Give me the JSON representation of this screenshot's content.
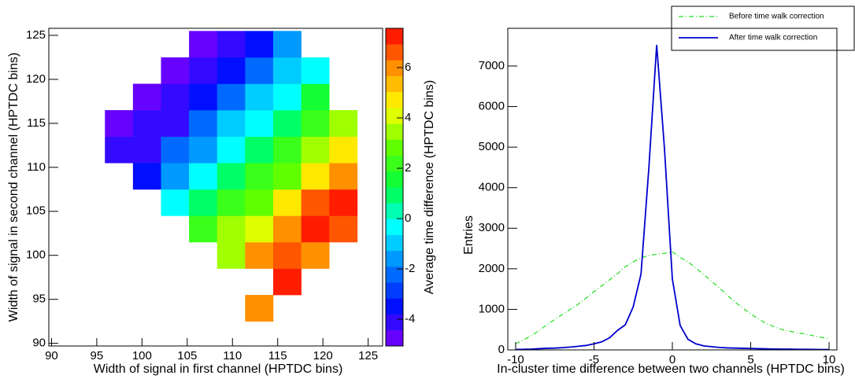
{
  "chart_data": [
    {
      "type": "heatmap",
      "x_label": "Width of signal in first channel (HPTDC bins)",
      "y_label": "Width of signal in second channel (HPTDC bins)",
      "z_label": "Average time difference (HPTDC bins)",
      "x_bins": [
        95.9,
        99.0,
        102.1,
        105.2,
        108.3,
        111.4,
        114.5,
        117.6,
        120.7,
        123.8
      ],
      "y_bins": [
        92.5,
        95.5,
        98.5,
        101.5,
        104.5,
        107.5,
        110.5,
        113.5,
        116.5,
        119.5,
        122.5,
        125.5
      ],
      "z": [
        [
          null,
          null,
          null,
          null,
          null,
          6.2,
          null,
          null,
          null
        ],
        [
          null,
          null,
          null,
          null,
          null,
          null,
          7.2,
          null,
          null
        ],
        [
          null,
          null,
          null,
          null,
          3.7,
          5.8,
          6.8,
          6.0,
          null
        ],
        [
          null,
          null,
          null,
          2.0,
          3.3,
          4.3,
          5.8,
          7.3,
          6.7
        ],
        [
          null,
          null,
          -0.4,
          0.8,
          2.0,
          3.0,
          5.0,
          6.8,
          7.2
        ],
        [
          null,
          -3.3,
          -1.8,
          -0.5,
          1.0,
          2.0,
          3.0,
          5.0,
          6.0
        ],
        [
          -4.0,
          -4.0,
          -2.3,
          -1.8,
          -0.5,
          1.0,
          2.0,
          3.6,
          4.5
        ],
        [
          -4.6,
          -4.3,
          -3.8,
          -2.3,
          -1.1,
          -0.2,
          1.2,
          2.0,
          3.6
        ],
        [
          null,
          -4.7,
          -4.2,
          -3.5,
          -2.3,
          -1.0,
          -0.3,
          1.3,
          null
        ],
        [
          null,
          null,
          -4.6,
          -4.2,
          -3.3,
          -2.2,
          -1.0,
          -0.3,
          null
        ],
        [
          null,
          null,
          null,
          -4.8,
          -4.0,
          -3.5,
          -1.8,
          null,
          null
        ]
      ],
      "xlim": [
        89.7,
        126.6
      ],
      "ylim": [
        89.7,
        125.8
      ],
      "zlim": [
        -5.06,
        7.56
      ],
      "xticks": [
        90,
        95,
        100,
        105,
        110,
        115,
        120,
        125
      ],
      "yticks": [
        90,
        95,
        100,
        105,
        110,
        115,
        120,
        125
      ],
      "zticks": [
        -4,
        -2,
        0,
        2,
        4,
        6
      ],
      "colors": [
        "#8000ff",
        "#0010ff",
        "#0080ff",
        "#00ffff",
        "#00ff40",
        "#60ff00",
        "#ffff00",
        "#ff9000",
        "#ff0000"
      ]
    },
    {
      "type": "line",
      "x_label": "In-cluster time difference between two channels (HPTDC bins)",
      "y_label": "Entries",
      "x": [
        -10,
        -9.5,
        -9,
        -8.5,
        -8,
        -7.5,
        -7,
        -6.5,
        -6,
        -5.5,
        -5,
        -4.5,
        -4,
        -3.5,
        -3,
        -2.5,
        -2,
        -1.5,
        -1,
        -0.5,
        0,
        0.5,
        1,
        1.5,
        2,
        2.5,
        3,
        3.5,
        4,
        4.5,
        5,
        5.5,
        6,
        6.5,
        7,
        7.5,
        8,
        8.5,
        9,
        9.5,
        10
      ],
      "series": [
        {
          "name": "Before time walk correction",
          "color": "#22dd22",
          "dash": true,
          "values": [
            150,
            250,
            350,
            480,
            620,
            750,
            880,
            1000,
            1130,
            1280,
            1440,
            1580,
            1730,
            1880,
            2050,
            2170,
            2270,
            2330,
            2360,
            2380,
            2420,
            2280,
            2170,
            2020,
            1860,
            1690,
            1530,
            1350,
            1180,
            1030,
            890,
            760,
            650,
            570,
            500,
            460,
            420,
            390,
            350,
            310,
            280
          ]
        },
        {
          "name": "After time walk correction",
          "color": "#0000cc",
          "dash": false,
          "values": [
            10,
            15,
            20,
            30,
            40,
            45,
            55,
            70,
            90,
            110,
            150,
            200,
            300,
            480,
            620,
            1060,
            1870,
            4480,
            7520,
            4950,
            1750,
            600,
            260,
            150,
            100,
            80,
            60,
            50,
            45,
            40,
            35,
            30,
            25,
            22,
            20,
            18,
            15,
            13,
            12,
            10,
            10
          ]
        }
      ],
      "xlim": [
        -10.5,
        10.5
      ],
      "ylim": [
        0,
        7930
      ],
      "xticks": [
        -10,
        -5,
        0,
        5,
        10
      ],
      "yticks": [
        0,
        1000,
        2000,
        3000,
        4000,
        5000,
        6000,
        7000
      ]
    }
  ]
}
